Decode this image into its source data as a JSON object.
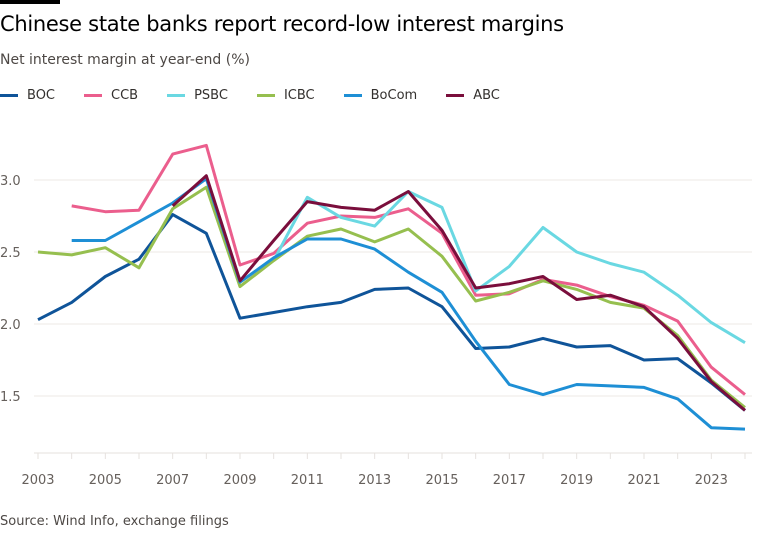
{
  "title": "Chinese state banks report record-low interest margins",
  "subtitle": "Net interest margin at year-end (%)",
  "source": "Source: Wind Info, exchange filings",
  "chart_data": {
    "type": "line",
    "title": "Chinese state banks report record-low interest margins",
    "ylabel": "Net interest margin at year-end (%)",
    "xlim": [
      2003,
      2024
    ],
    "ylim": [
      1.1,
      3.3
    ],
    "yticks": [
      1.5,
      2.0,
      2.5,
      3.0
    ],
    "ytick_labels": [
      "1.5",
      "2.0",
      "2.5",
      "3.0"
    ],
    "xticks": [
      2003,
      2005,
      2007,
      2009,
      2011,
      2013,
      2015,
      2017,
      2019,
      2021,
      2023
    ],
    "xtick_labels": [
      "2003",
      "2005",
      "2007",
      "2009",
      "2011",
      "2013",
      "2015",
      "2017",
      "2019",
      "2021",
      "2023"
    ],
    "grid": true,
    "legend": "top-left",
    "series": [
      {
        "name": "BOC",
        "color": "#0f5499",
        "start": 2003,
        "values": [
          2.03,
          2.15,
          2.33,
          2.45,
          2.76,
          2.63,
          2.04,
          2.08,
          2.12,
          2.15,
          2.24,
          2.25,
          2.12,
          1.83,
          1.84,
          1.9,
          1.84,
          1.85,
          1.75,
          1.76,
          1.59,
          1.4
        ]
      },
      {
        "name": "CCB",
        "color": "#eb5e8d",
        "start": 2004,
        "values": [
          2.82,
          2.78,
          2.79,
          3.18,
          3.24,
          2.41,
          2.49,
          2.7,
          2.75,
          2.74,
          2.8,
          2.63,
          2.2,
          2.21,
          2.31,
          2.27,
          2.19,
          2.13,
          2.02,
          1.7,
          1.51
        ]
      },
      {
        "name": "PSBC",
        "color": "#6ad8e2",
        "start": 2010,
        "values": [
          2.44,
          2.88,
          2.74,
          2.68,
          2.92,
          2.81,
          2.23,
          2.4,
          2.67,
          2.5,
          2.42,
          2.36,
          2.2,
          2.01,
          1.87
        ]
      },
      {
        "name": "ICBC",
        "color": "#96bf4f",
        "start": 2003,
        "values": [
          2.5,
          2.48,
          2.53,
          2.39,
          2.8,
          2.95,
          2.26,
          2.44,
          2.61,
          2.66,
          2.57,
          2.66,
          2.47,
          2.16,
          2.22,
          2.3,
          2.24,
          2.15,
          2.11,
          1.92,
          1.61,
          1.42
        ]
      },
      {
        "name": "BoCom",
        "color": "#1e8fd5",
        "start": 2004,
        "values": [
          2.58,
          2.58,
          2.71,
          2.84,
          3.01,
          2.29,
          2.46,
          2.59,
          2.59,
          2.52,
          2.36,
          2.22,
          1.88,
          1.58,
          1.51,
          1.58,
          1.57,
          1.56,
          1.48,
          1.28,
          1.27
        ]
      },
      {
        "name": "ABC",
        "color": "#7a0e3c",
        "start": 2007,
        "values": [
          2.82,
          3.03,
          2.3,
          2.58,
          2.85,
          2.81,
          2.79,
          2.92,
          2.65,
          2.25,
          2.28,
          2.33,
          2.17,
          2.2,
          2.12,
          1.9,
          1.6,
          1.4
        ]
      }
    ]
  }
}
